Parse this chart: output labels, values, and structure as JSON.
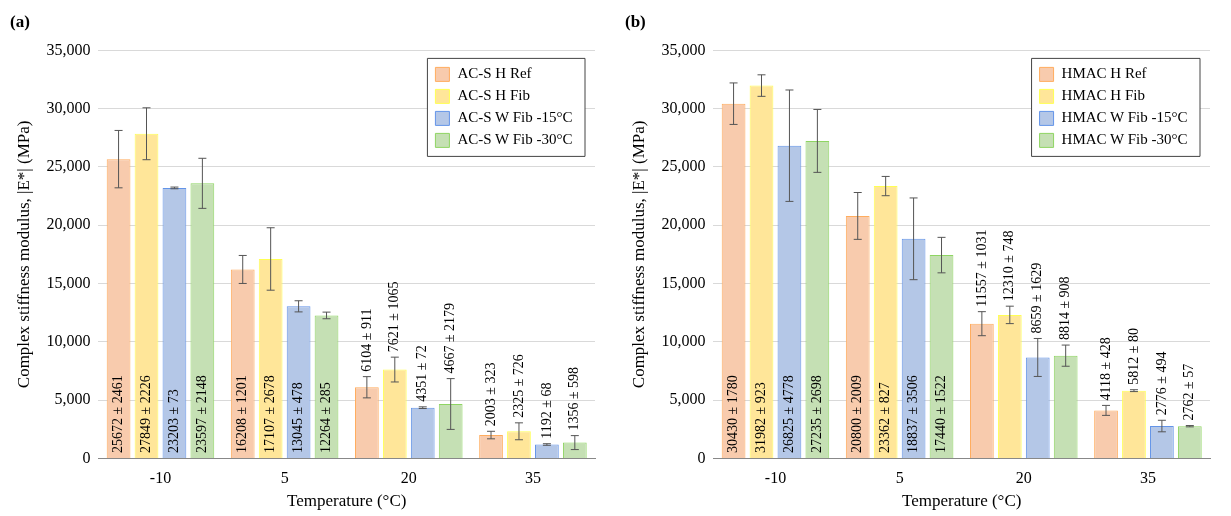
{
  "chart_data": [
    {
      "type": "bar",
      "title": "(a)",
      "xlabel": "Temperature (°C)",
      "ylabel": "Complex stiffness modulus, |E*| (MPa)",
      "categories": [
        "-10",
        "5",
        "20",
        "35"
      ],
      "ylim": [
        0,
        35000
      ],
      "yticks": [
        {
          "value": 0,
          "label": "0"
        },
        {
          "value": 5000,
          "label": "5,000"
        },
        {
          "value": 10000,
          "label": "10,000"
        },
        {
          "value": 15000,
          "label": "15,000"
        },
        {
          "value": 20000,
          "label": "20,000"
        },
        {
          "value": 25000,
          "label": "25,000"
        },
        {
          "value": 30000,
          "label": "30,000"
        },
        {
          "value": 35000,
          "label": "35,000"
        }
      ],
      "grid": "y",
      "legend": "top right",
      "series": [
        {
          "name": "AC-S H Ref",
          "color": "#f8cbad",
          "values": [
            25672,
            16208,
            6104,
            2003
          ],
          "errors": [
            2461,
            1201,
            911,
            323
          ],
          "value_labels": [
            "25672 ± 2461",
            "16208 ± 1201",
            "6104 ± 911",
            "2003 ± 323"
          ]
        },
        {
          "name": "AC-S H Fib",
          "color": "#ffe699",
          "values": [
            27849,
            17107,
            7621,
            2325
          ],
          "errors": [
            2226,
            2678,
            1065,
            726
          ],
          "value_labels": [
            "27849 ± 2226",
            "17107 ± 2678",
            "7621 ± 1065",
            "2325 ± 726"
          ]
        },
        {
          "name": "AC-S W Fib -15°C",
          "color": "#b4c7e7",
          "values": [
            23203,
            13045,
            4351,
            1192
          ],
          "errors": [
            73,
            478,
            72,
            68
          ],
          "value_labels": [
            "23203 ± 73",
            "13045 ± 478",
            "4351 ± 72",
            "1192 ± 68"
          ]
        },
        {
          "name": "AC-S W Fib -30°C",
          "color": "#c5e0b4",
          "values": [
            23597,
            12264,
            4667,
            1356
          ],
          "errors": [
            2148,
            285,
            2179,
            598
          ],
          "value_labels": [
            "23597 ± 2148",
            "12264 ± 285",
            "4667 ± 2179",
            "1356 ± 598"
          ]
        }
      ]
    },
    {
      "type": "bar",
      "title": "(b)",
      "xlabel": "Temperature (°C)",
      "ylabel": "Complex stiffness modulus, |E*| (MPa)",
      "categories": [
        "-10",
        "5",
        "20",
        "35"
      ],
      "ylim": [
        0,
        35000
      ],
      "yticks": [
        {
          "value": 0,
          "label": "0"
        },
        {
          "value": 5000,
          "label": "5,000"
        },
        {
          "value": 10000,
          "label": "10,000"
        },
        {
          "value": 15000,
          "label": "15,000"
        },
        {
          "value": 20000,
          "label": "20,000"
        },
        {
          "value": 25000,
          "label": "25,000"
        },
        {
          "value": 30000,
          "label": "30,000"
        },
        {
          "value": 35000,
          "label": "35,000"
        }
      ],
      "grid": "y",
      "legend": "top right",
      "series": [
        {
          "name": "HMAC H Ref",
          "color": "#f8cbad",
          "values": [
            30430,
            20800,
            11557,
            4118
          ],
          "errors": [
            1780,
            2009,
            1031,
            428
          ],
          "value_labels": [
            "30430 ± 1780",
            "20800 ± 2009",
            "11557 ± 1031",
            "4118 ± 428"
          ]
        },
        {
          "name": "HMAC H Fib",
          "color": "#ffe699",
          "values": [
            31982,
            23362,
            12310,
            5812
          ],
          "errors": [
            923,
            827,
            748,
            80
          ],
          "value_labels": [
            "31982 ± 923",
            "23362 ± 827",
            "12310 ± 748",
            "5812 ± 80"
          ]
        },
        {
          "name": "HMAC W Fib -15°C",
          "color": "#b4c7e7",
          "values": [
            26825,
            18837,
            8659,
            2776
          ],
          "errors": [
            4778,
            3506,
            1629,
            494
          ],
          "value_labels": [
            "26825 ± 4778",
            "18837 ± 3506",
            "8659 ± 1629",
            "2776 ± 494"
          ]
        },
        {
          "name": "HMAC W Fib -30°C",
          "color": "#c5e0b4",
          "values": [
            27235,
            17440,
            8814,
            2762
          ],
          "errors": [
            2698,
            1522,
            908,
            57
          ],
          "value_labels": [
            "27235 ± 2698",
            "17440 ± 1522",
            "8814 ± 908",
            "2762 ± 57"
          ]
        }
      ]
    }
  ]
}
